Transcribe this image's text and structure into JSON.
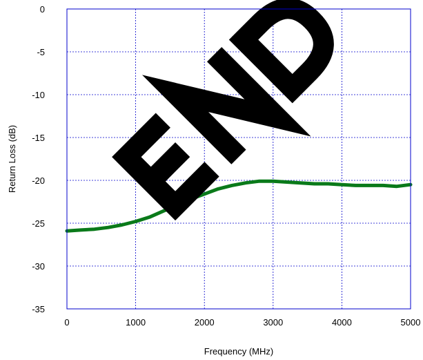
{
  "chart_data": {
    "type": "line",
    "xlabel": "Frequency (MHz)",
    "ylabel": "Return Loss (dB)",
    "xlim": [
      0,
      5000
    ],
    "ylim": [
      -35,
      0
    ],
    "x_ticks": [
      0,
      1000,
      2000,
      3000,
      4000,
      5000
    ],
    "y_ticks": [
      0,
      -5,
      -10,
      -15,
      -20,
      -25,
      -30,
      -35
    ],
    "x_tick_labels": [
      "0",
      "1000",
      "2000",
      "3000",
      "4000",
      "5000"
    ],
    "y_tick_labels": [
      "0",
      "-5",
      "-10",
      "-15",
      "-20",
      "-25",
      "-30",
      "-35"
    ],
    "grid": true,
    "grid_color": "#0000cc",
    "series": [
      {
        "color": "#0a7a1a",
        "x": [
          0,
          200,
          400,
          600,
          800,
          1000,
          1200,
          1400,
          1600,
          1800,
          2000,
          2200,
          2400,
          2600,
          2800,
          3000,
          3200,
          3400,
          3600,
          3800,
          4000,
          4200,
          4400,
          4600,
          4800,
          5000
        ],
        "y": [
          -25.9,
          -25.8,
          -25.7,
          -25.5,
          -25.2,
          -24.8,
          -24.3,
          -23.6,
          -22.9,
          -22.2,
          -21.6,
          -21.0,
          -20.6,
          -20.3,
          -20.1,
          -20.1,
          -20.2,
          -20.3,
          -20.4,
          -20.4,
          -20.5,
          -20.6,
          -20.6,
          -20.6,
          -20.7,
          -20.5
        ]
      }
    ],
    "watermark": "END"
  }
}
